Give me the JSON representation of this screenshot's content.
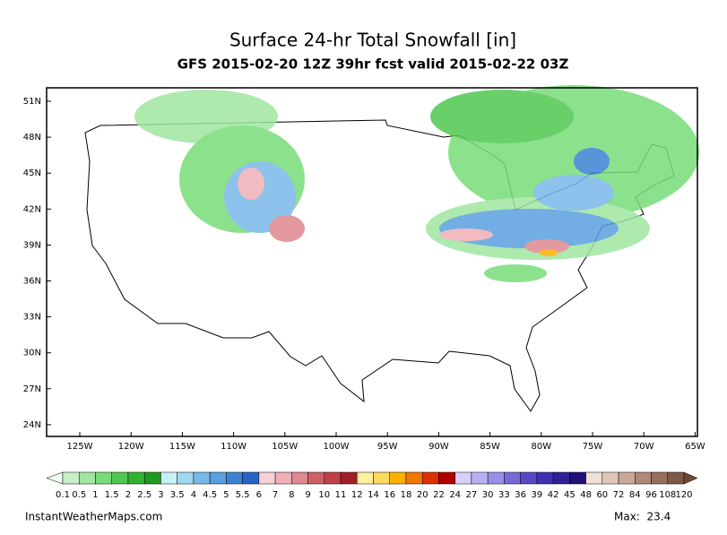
{
  "header": {
    "title": "Surface 24-hr Total Snowfall [in]",
    "subtitle": "GFS 2015-02-20 12Z 39hr fcst valid 2015-02-22 03Z"
  },
  "map": {
    "lat_labels": [
      "51N",
      "48N",
      "45N",
      "42N",
      "39N",
      "36N",
      "33N",
      "30N",
      "27N",
      "24N"
    ],
    "lon_labels": [
      "125W",
      "120W",
      "115W",
      "110W",
      "105W",
      "100W",
      "95W",
      "90W",
      "85W",
      "80W",
      "75W",
      "70W",
      "65W"
    ]
  },
  "colorbar": {
    "labels": [
      "0.1",
      "0.5",
      "1",
      "1.5",
      "2",
      "2.5",
      "3",
      "3.5",
      "4",
      "4.5",
      "5",
      "5.5",
      "6",
      "7",
      "8",
      "9",
      "10",
      "11",
      "12",
      "14",
      "16",
      "18",
      "20",
      "22",
      "24",
      "27",
      "30",
      "33",
      "36",
      "39",
      "42",
      "45",
      "48",
      "60",
      "72",
      "84",
      "96",
      "108",
      "120"
    ],
    "colors": [
      "#c8f0c8",
      "#a0e6a0",
      "#78dc78",
      "#50c850",
      "#32b432",
      "#1e9b1e",
      "#c8f0f8",
      "#a0d8f0",
      "#78b8e8",
      "#5aa0e0",
      "#3c82d2",
      "#2864c8",
      "#f8d0d8",
      "#f0b0b8",
      "#e08890",
      "#d06068",
      "#c04048",
      "#a02028",
      "#fff0a0",
      "#ffd860",
      "#ffb000",
      "#f07800",
      "#e03000",
      "#b00000",
      "#d8d0f8",
      "#b8b0f0",
      "#9890e8",
      "#7868d8",
      "#5848c8",
      "#4030b0",
      "#302098",
      "#201078",
      "#f0e0d8",
      "#e0c8b8",
      "#c8a898",
      "#b08878",
      "#987060",
      "#805848"
    ],
    "under_color": "#f0fff0",
    "over_color": "#704838"
  },
  "footer": {
    "source": "InstantWeatherMaps.com",
    "max": "Max:  23.4"
  }
}
